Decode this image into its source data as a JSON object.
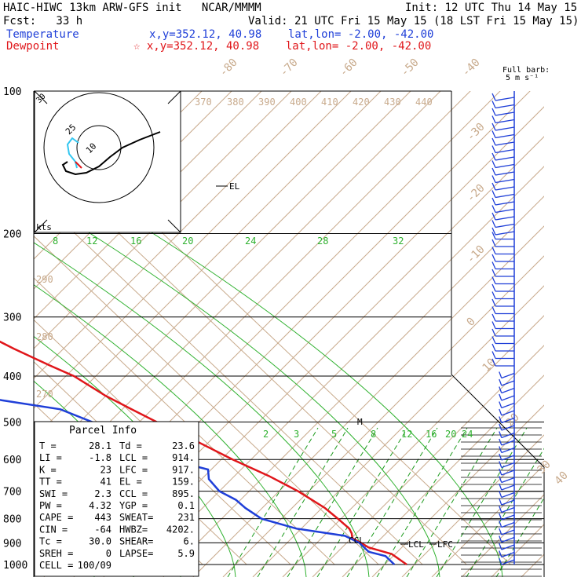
{
  "header": {
    "title": "HAIC-HIWC 13km ARW-GFS init   NCAR/MMMM",
    "init": "Init: 12 UTC Thu 14 May 15",
    "fcst": "Fcst:   33 h",
    "valid": "Valid: 21 UTC Fri 15 May 15 (18 LST Fri 15 May 15)",
    "temp_label": "Temperature",
    "temp_loc": "x,y=352.12, 40.98    lat,lon= -2.00, -42.00",
    "dew_label": "Dewpoint",
    "dew_loc": "☆ x,y=352.12, 40.98    lat,lon= -2.00, -42.00"
  },
  "barb_key": {
    "line1": "Full barb:",
    "line2": "5 m s⁻¹"
  },
  "colors": {
    "temperature": "#e0161a",
    "dewpoint": "#1f3fd8",
    "isotherm": "#c8aa8c",
    "mixing_ratio": "#1c9a1c",
    "moist_adiabat": "#2fb12f",
    "hodo_red": "#e0161a",
    "hodo_cyan": "#33c6f0"
  },
  "chart_data": {
    "type": "line",
    "title": "",
    "y_scale": "log-pressure",
    "pressure_levels": [
      100,
      200,
      300,
      400,
      500,
      600,
      700,
      800,
      900,
      1000
    ],
    "isotherm_labels": [
      "-80",
      "-70",
      "-60",
      "-50",
      "-40",
      "-30",
      "-20",
      "-10",
      "0",
      "10",
      "20",
      "30",
      "40"
    ],
    "theta_labels": [
      "370",
      "380",
      "390",
      "400",
      "410",
      "420",
      "430",
      "440",
      "290",
      "280",
      "270"
    ],
    "moist_labels_top": [
      "8",
      "12",
      "16",
      "20",
      "24",
      "28",
      "32"
    ],
    "mixing_ratio_labels": [
      "2",
      "3",
      "5",
      "8",
      "12",
      "16",
      "20",
      "24"
    ],
    "annotations": {
      "el": "EL",
      "m": "M",
      "ccl": "CCL",
      "lcl": "LCL",
      "lfc": "LFC"
    },
    "series": [
      {
        "name": "Temperature",
        "color": "#1f3fd8",
        "points": [
          [
            1000,
            26.4
          ],
          [
            950,
            25.5
          ],
          [
            920,
            21.8
          ],
          [
            900,
            21.2
          ],
          [
            880,
            20.3
          ],
          [
            860,
            21.3
          ],
          [
            840,
            21.9
          ],
          [
            800,
            21.7
          ],
          [
            760,
            21.3
          ],
          [
            700,
            19.2
          ],
          [
            650,
            16.2
          ],
          [
            600,
            11.9
          ],
          [
            550,
            8.1
          ],
          [
            500,
            3.6
          ],
          [
            470,
            0.9
          ],
          [
            440,
            -1.8
          ],
          [
            400,
            -4.3
          ],
          [
            380,
            -7.2
          ],
          [
            350,
            -11.4
          ],
          [
            320,
            -15.3
          ],
          [
            300,
            -18.9
          ],
          [
            270,
            -24.7
          ],
          [
            250,
            -28.1
          ],
          [
            220,
            -34.9
          ],
          [
            200,
            -38.8
          ],
          [
            180,
            -43.0
          ],
          [
            160,
            -49.0
          ],
          [
            150,
            -52.4
          ],
          [
            130,
            -56.9
          ],
          [
            120,
            -59.5
          ],
          [
            110,
            -64.0
          ],
          [
            100,
            -67.3
          ]
        ]
      },
      {
        "name": "Dewpoint",
        "color": "#e0161a",
        "points": [
          [
            1000,
            23.6
          ],
          [
            960,
            23.6
          ],
          [
            940,
            20.8
          ],
          [
            900,
            20.8
          ],
          [
            870,
            19.2
          ],
          [
            840,
            9.9
          ],
          [
            800,
            4.3
          ],
          [
            760,
            3.2
          ],
          [
            730,
            3.0
          ],
          [
            700,
            1.3
          ],
          [
            660,
            1.8
          ],
          [
            630,
            3.9
          ],
          [
            600,
            -2.6
          ],
          [
            570,
            -4.8
          ],
          [
            540,
            -9.1
          ],
          [
            500,
            -11.1
          ],
          [
            470,
            -15.3
          ],
          [
            450,
            -26.4
          ],
          [
            420,
            -39.2
          ],
          [
            400,
            -50.1
          ],
          [
            390,
            -51.8
          ],
          [
            375,
            -46.6
          ],
          [
            350,
            -38.9
          ],
          [
            330,
            -42.6
          ],
          [
            300,
            -50.5
          ],
          [
            280,
            -49.1
          ],
          [
            260,
            -55.4
          ],
          [
            240,
            -60.8
          ],
          [
            220,
            -65.7
          ],
          [
            200,
            -71.6
          ],
          [
            180,
            -74.8
          ],
          [
            160,
            -79.2
          ],
          [
            140,
            -83.2
          ],
          [
            120,
            -85.1
          ],
          [
            100,
            -89.2
          ]
        ]
      }
    ],
    "hodograph": {
      "rings_label": [
        "25",
        "10"
      ],
      "unit": "kts",
      "corner": "30"
    }
  },
  "parcel_info": {
    "title": "Parcel Info",
    "rows": [
      {
        "a": "T  =",
        "av": "28.1",
        "b": "Td =",
        "bv": "23.6"
      },
      {
        "a": "LI =",
        "av": "-1.8",
        "b": "LCL =",
        "bv": "914."
      },
      {
        "a": "K  =",
        "av": "23",
        "b": "LFC =",
        "bv": "917."
      },
      {
        "a": "TT =",
        "av": "41",
        "b": "EL  =",
        "bv": "159."
      },
      {
        "a": "SWI =",
        "av": "2.3",
        "b": "CCL =",
        "bv": "895."
      },
      {
        "a": "PW =",
        "av": "4.32",
        "b": "YGP =",
        "bv": "0.1"
      },
      {
        "a": "CAPE =",
        "av": "443",
        "b": "SWEAT=",
        "bv": "231"
      },
      {
        "a": "CIN =",
        "av": "-64",
        "b": "HWBZ=",
        "bv": "4202."
      },
      {
        "a": "Tc =",
        "av": "30.0",
        "b": "SHEAR=",
        "bv": "6."
      },
      {
        "a": "SREH =",
        "av": "0",
        "b": "LAPSE=",
        "bv": "5.9"
      },
      {
        "a": "CELL =",
        "av": "100/09",
        "b": "",
        "bv": ""
      }
    ]
  }
}
